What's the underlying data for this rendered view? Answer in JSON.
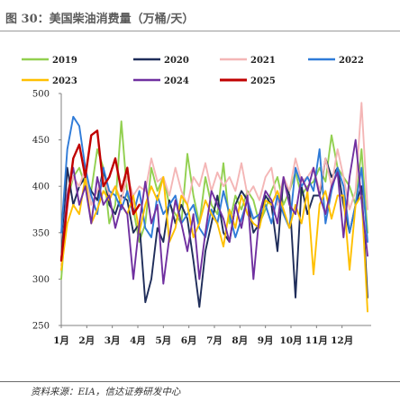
{
  "title": "图 30：美国柴油消费量（万桶/天）",
  "source": "资料来源：EIA，信达证券研发中心",
  "chart_data": {
    "type": "line",
    "title": "图 30：美国柴油消费量（万桶/天）",
    "xlabel": "",
    "ylabel": "",
    "ylim": [
      250,
      500
    ],
    "yticks": [
      250,
      300,
      350,
      400,
      450,
      500
    ],
    "x_labels": [
      "1月",
      "2月",
      "3月",
      "4月",
      "5月",
      "6月",
      "7月",
      "8月",
      "9月",
      "10月",
      "11月",
      "12月"
    ],
    "weeks": 52,
    "grid": false,
    "legend_position": "top",
    "series": [
      {
        "name": "2019",
        "color": "#92d050",
        "values": [
          300,
          385,
          410,
          420,
          400,
          395,
          440,
          420,
          360,
          380,
          470,
          390,
          375,
          340,
          360,
          420,
          395,
          410,
          380,
          370,
          360,
          435,
          390,
          360,
          410,
          380,
          370,
          425,
          360,
          390,
          375,
          395,
          385,
          360,
          375,
          395,
          410,
          380,
          395,
          415,
          390,
          400,
          405,
          420,
          405,
          455,
          420,
          410,
          400,
          380,
          440,
          350
        ]
      },
      {
        "name": "2020",
        "color": "#1f2d5a",
        "values": [
          320,
          420,
          380,
          400,
          410,
          395,
          385,
          420,
          380,
          370,
          390,
          385,
          350,
          360,
          275,
          300,
          355,
          340,
          385,
          360,
          380,
          365,
          320,
          270,
          330,
          360,
          390,
          350,
          340,
          380,
          395,
          385,
          350,
          360,
          390,
          380,
          330,
          410,
          390,
          280,
          400,
          370,
          390,
          390,
          430,
          410,
          420,
          380,
          350,
          380,
          400,
          280
        ]
      },
      {
        "name": "2021",
        "color": "#f4b6b6",
        "values": [
          315,
          395,
          410,
          400,
          420,
          380,
          395,
          410,
          390,
          400,
          385,
          410,
          390,
          400,
          395,
          430,
          405,
          410,
          390,
          420,
          395,
          380,
          410,
          400,
          425,
          395,
          415,
          400,
          410,
          395,
          425,
          390,
          400,
          385,
          410,
          420,
          380,
          410,
          395,
          430,
          405,
          410,
          420,
          395,
          430,
          400,
          440,
          410,
          375,
          395,
          490,
          375
        ]
      },
      {
        "name": "2022",
        "color": "#2f7bd8",
        "values": [
          350,
          440,
          475,
          465,
          420,
          390,
          370,
          420,
          395,
          390,
          375,
          395,
          370,
          395,
          355,
          345,
          390,
          370,
          380,
          390,
          360,
          370,
          380,
          355,
          345,
          375,
          360,
          395,
          370,
          345,
          365,
          385,
          365,
          370,
          380,
          360,
          390,
          370,
          355,
          420,
          400,
          410,
          395,
          440,
          360,
          395,
          420,
          400,
          350,
          380,
          420,
          340
        ]
      },
      {
        "name": "2023",
        "color": "#ffc000",
        "values": [
          310,
          360,
          380,
          370,
          410,
          360,
          375,
          395,
          385,
          400,
          380,
          370,
          390,
          350,
          380,
          400,
          385,
          410,
          340,
          355,
          390,
          380,
          345,
          360,
          385,
          370,
          360,
          335,
          375,
          355,
          390,
          370,
          360,
          355,
          385,
          380,
          395,
          375,
          355,
          380,
          360,
          395,
          305,
          380,
          395,
          365,
          390,
          390,
          310,
          380,
          390,
          265
        ]
      },
      {
        "name": "2024",
        "color": "#7030a0",
        "values": [
          320,
          390,
          420,
          380,
          400,
          360,
          410,
          380,
          390,
          355,
          380,
          370,
          300,
          360,
          405,
          360,
          380,
          295,
          345,
          385,
          360,
          330,
          370,
          300,
          350,
          395,
          380,
          365,
          340,
          380,
          355,
          390,
          300,
          370,
          395,
          385,
          360,
          410,
          380,
          370,
          410,
          395,
          420,
          390,
          370,
          400,
          415,
          345,
          410,
          450,
          385,
          325
        ]
      },
      {
        "name": "2025",
        "color": "#c00000",
        "values": [
          320,
          380,
          430,
          445,
          410,
          455,
          460,
          400,
          410,
          430,
          395,
          420,
          370,
          380
        ]
      }
    ]
  }
}
